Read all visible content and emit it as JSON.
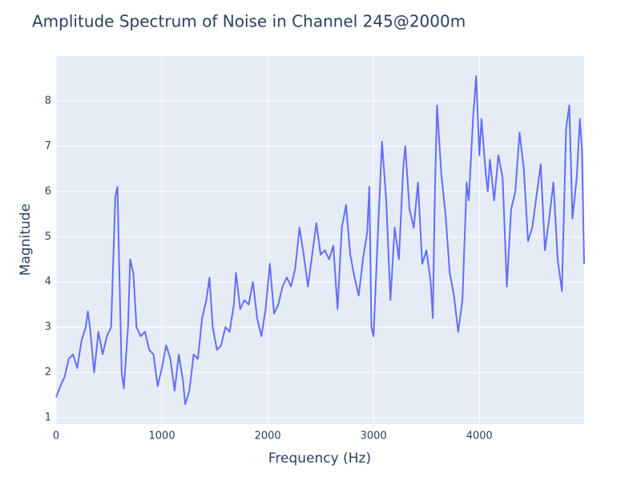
{
  "chart_data": {
    "type": "line",
    "title": "Amplitude Spectrum of Noise in Channel 245@2000m",
    "x_label": "Frequency (Hz)",
    "y_label": "Magnitude",
    "x": [
      0,
      40,
      80,
      120,
      160,
      200,
      240,
      280,
      300,
      320,
      360,
      400,
      440,
      480,
      520,
      560,
      580,
      600,
      620,
      640,
      680,
      700,
      730,
      760,
      800,
      840,
      880,
      920,
      960,
      1000,
      1040,
      1080,
      1120,
      1160,
      1200,
      1220,
      1260,
      1300,
      1340,
      1380,
      1420,
      1450,
      1480,
      1520,
      1560,
      1600,
      1640,
      1680,
      1700,
      1740,
      1780,
      1820,
      1860,
      1900,
      1940,
      1980,
      2020,
      2060,
      2100,
      2140,
      2180,
      2220,
      2260,
      2300,
      2340,
      2380,
      2420,
      2460,
      2500,
      2540,
      2580,
      2620,
      2660,
      2700,
      2740,
      2780,
      2820,
      2860,
      2900,
      2940,
      2960,
      2980,
      3000,
      3040,
      3080,
      3120,
      3160,
      3200,
      3240,
      3280,
      3300,
      3340,
      3380,
      3420,
      3460,
      3500,
      3540,
      3560,
      3580,
      3600,
      3640,
      3680,
      3720,
      3760,
      3800,
      3840,
      3880,
      3900,
      3940,
      3970,
      4000,
      4020,
      4060,
      4080,
      4100,
      4140,
      4180,
      4220,
      4260,
      4300,
      4340,
      4380,
      4420,
      4460,
      4500,
      4540,
      4580,
      4620,
      4660,
      4700,
      4740,
      4780,
      4820,
      4850,
      4880,
      4920,
      4950,
      4970,
      4990
    ],
    "values": [
      1.45,
      1.7,
      1.9,
      2.3,
      2.4,
      2.1,
      2.7,
      3.0,
      3.35,
      3.0,
      2.0,
      2.9,
      2.4,
      2.8,
      3.0,
      5.9,
      6.1,
      4.0,
      2.0,
      1.65,
      3.0,
      4.5,
      4.2,
      3.0,
      2.8,
      2.9,
      2.5,
      2.4,
      1.7,
      2.1,
      2.6,
      2.3,
      1.6,
      2.4,
      1.8,
      1.3,
      1.6,
      2.4,
      2.3,
      3.2,
      3.6,
      4.1,
      3.0,
      2.5,
      2.6,
      3.0,
      2.9,
      3.5,
      4.2,
      3.4,
      3.6,
      3.5,
      4.0,
      3.2,
      2.8,
      3.4,
      4.4,
      3.3,
      3.5,
      3.9,
      4.1,
      3.9,
      4.3,
      5.2,
      4.6,
      3.9,
      4.6,
      5.3,
      4.6,
      4.7,
      4.5,
      4.8,
      3.4,
      5.2,
      5.7,
      4.6,
      4.1,
      3.7,
      4.5,
      5.1,
      6.1,
      3.0,
      2.8,
      5.0,
      7.1,
      5.8,
      3.6,
      5.2,
      4.5,
      6.5,
      7.0,
      5.6,
      5.2,
      6.2,
      4.4,
      4.7,
      4.0,
      3.2,
      6.0,
      7.9,
      6.4,
      5.5,
      4.2,
      3.7,
      2.9,
      3.6,
      6.2,
      5.8,
      7.6,
      8.55,
      6.8,
      7.6,
      6.4,
      6.0,
      6.7,
      5.8,
      6.8,
      6.3,
      3.9,
      5.6,
      6.0,
      7.3,
      6.5,
      4.9,
      5.2,
      5.9,
      6.6,
      4.7,
      5.4,
      6.2,
      4.5,
      3.8,
      7.4,
      7.9,
      5.4,
      6.3,
      7.6,
      6.9,
      4.4
    ],
    "color": "#636efa",
    "xlim": [
      0,
      4990
    ],
    "ylim": [
      0.86,
      8.99
    ],
    "xticks": [
      0,
      1000,
      2000,
      3000,
      4000
    ],
    "yticks": [
      1,
      2,
      3,
      4,
      5,
      6,
      7,
      8
    ],
    "grid": true
  }
}
